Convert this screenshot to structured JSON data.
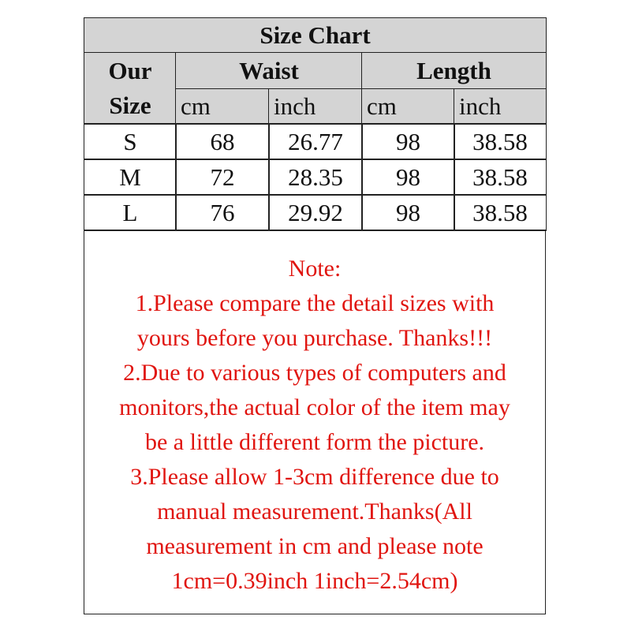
{
  "title": "Size Chart",
  "headers": {
    "size": "Our Size",
    "size_line1": "Our",
    "size_line2": "Size",
    "waist": "Waist",
    "length": "Length",
    "units": [
      "cm",
      "inch",
      "cm",
      "inch"
    ]
  },
  "rows": [
    {
      "size": "S",
      "waist_cm": "68",
      "waist_inch": "26.77",
      "length_cm": "98",
      "length_inch": "38.58"
    },
    {
      "size": "M",
      "waist_cm": "72",
      "waist_inch": "28.35",
      "length_cm": "98",
      "length_inch": "38.58"
    },
    {
      "size": "L",
      "waist_cm": "76",
      "waist_inch": "29.92",
      "length_cm": "98",
      "length_inch": "38.58"
    }
  ],
  "note": {
    "lines": [
      "Note:",
      "1.Please compare the detail sizes with",
      "yours before you purchase. Thanks!!!",
      "2.Due to various types of computers and",
      "monitors,the actual color of the item may",
      "be a little different form the picture.",
      "3.Please allow 1-3cm difference due to",
      "manual measurement.Thanks(All",
      "measurement in cm and please note",
      "1cm=0.39inch 1inch=2.54cm)"
    ]
  },
  "colors": {
    "header_bg": "#d4d4d4",
    "note_text": "#e0140f"
  }
}
